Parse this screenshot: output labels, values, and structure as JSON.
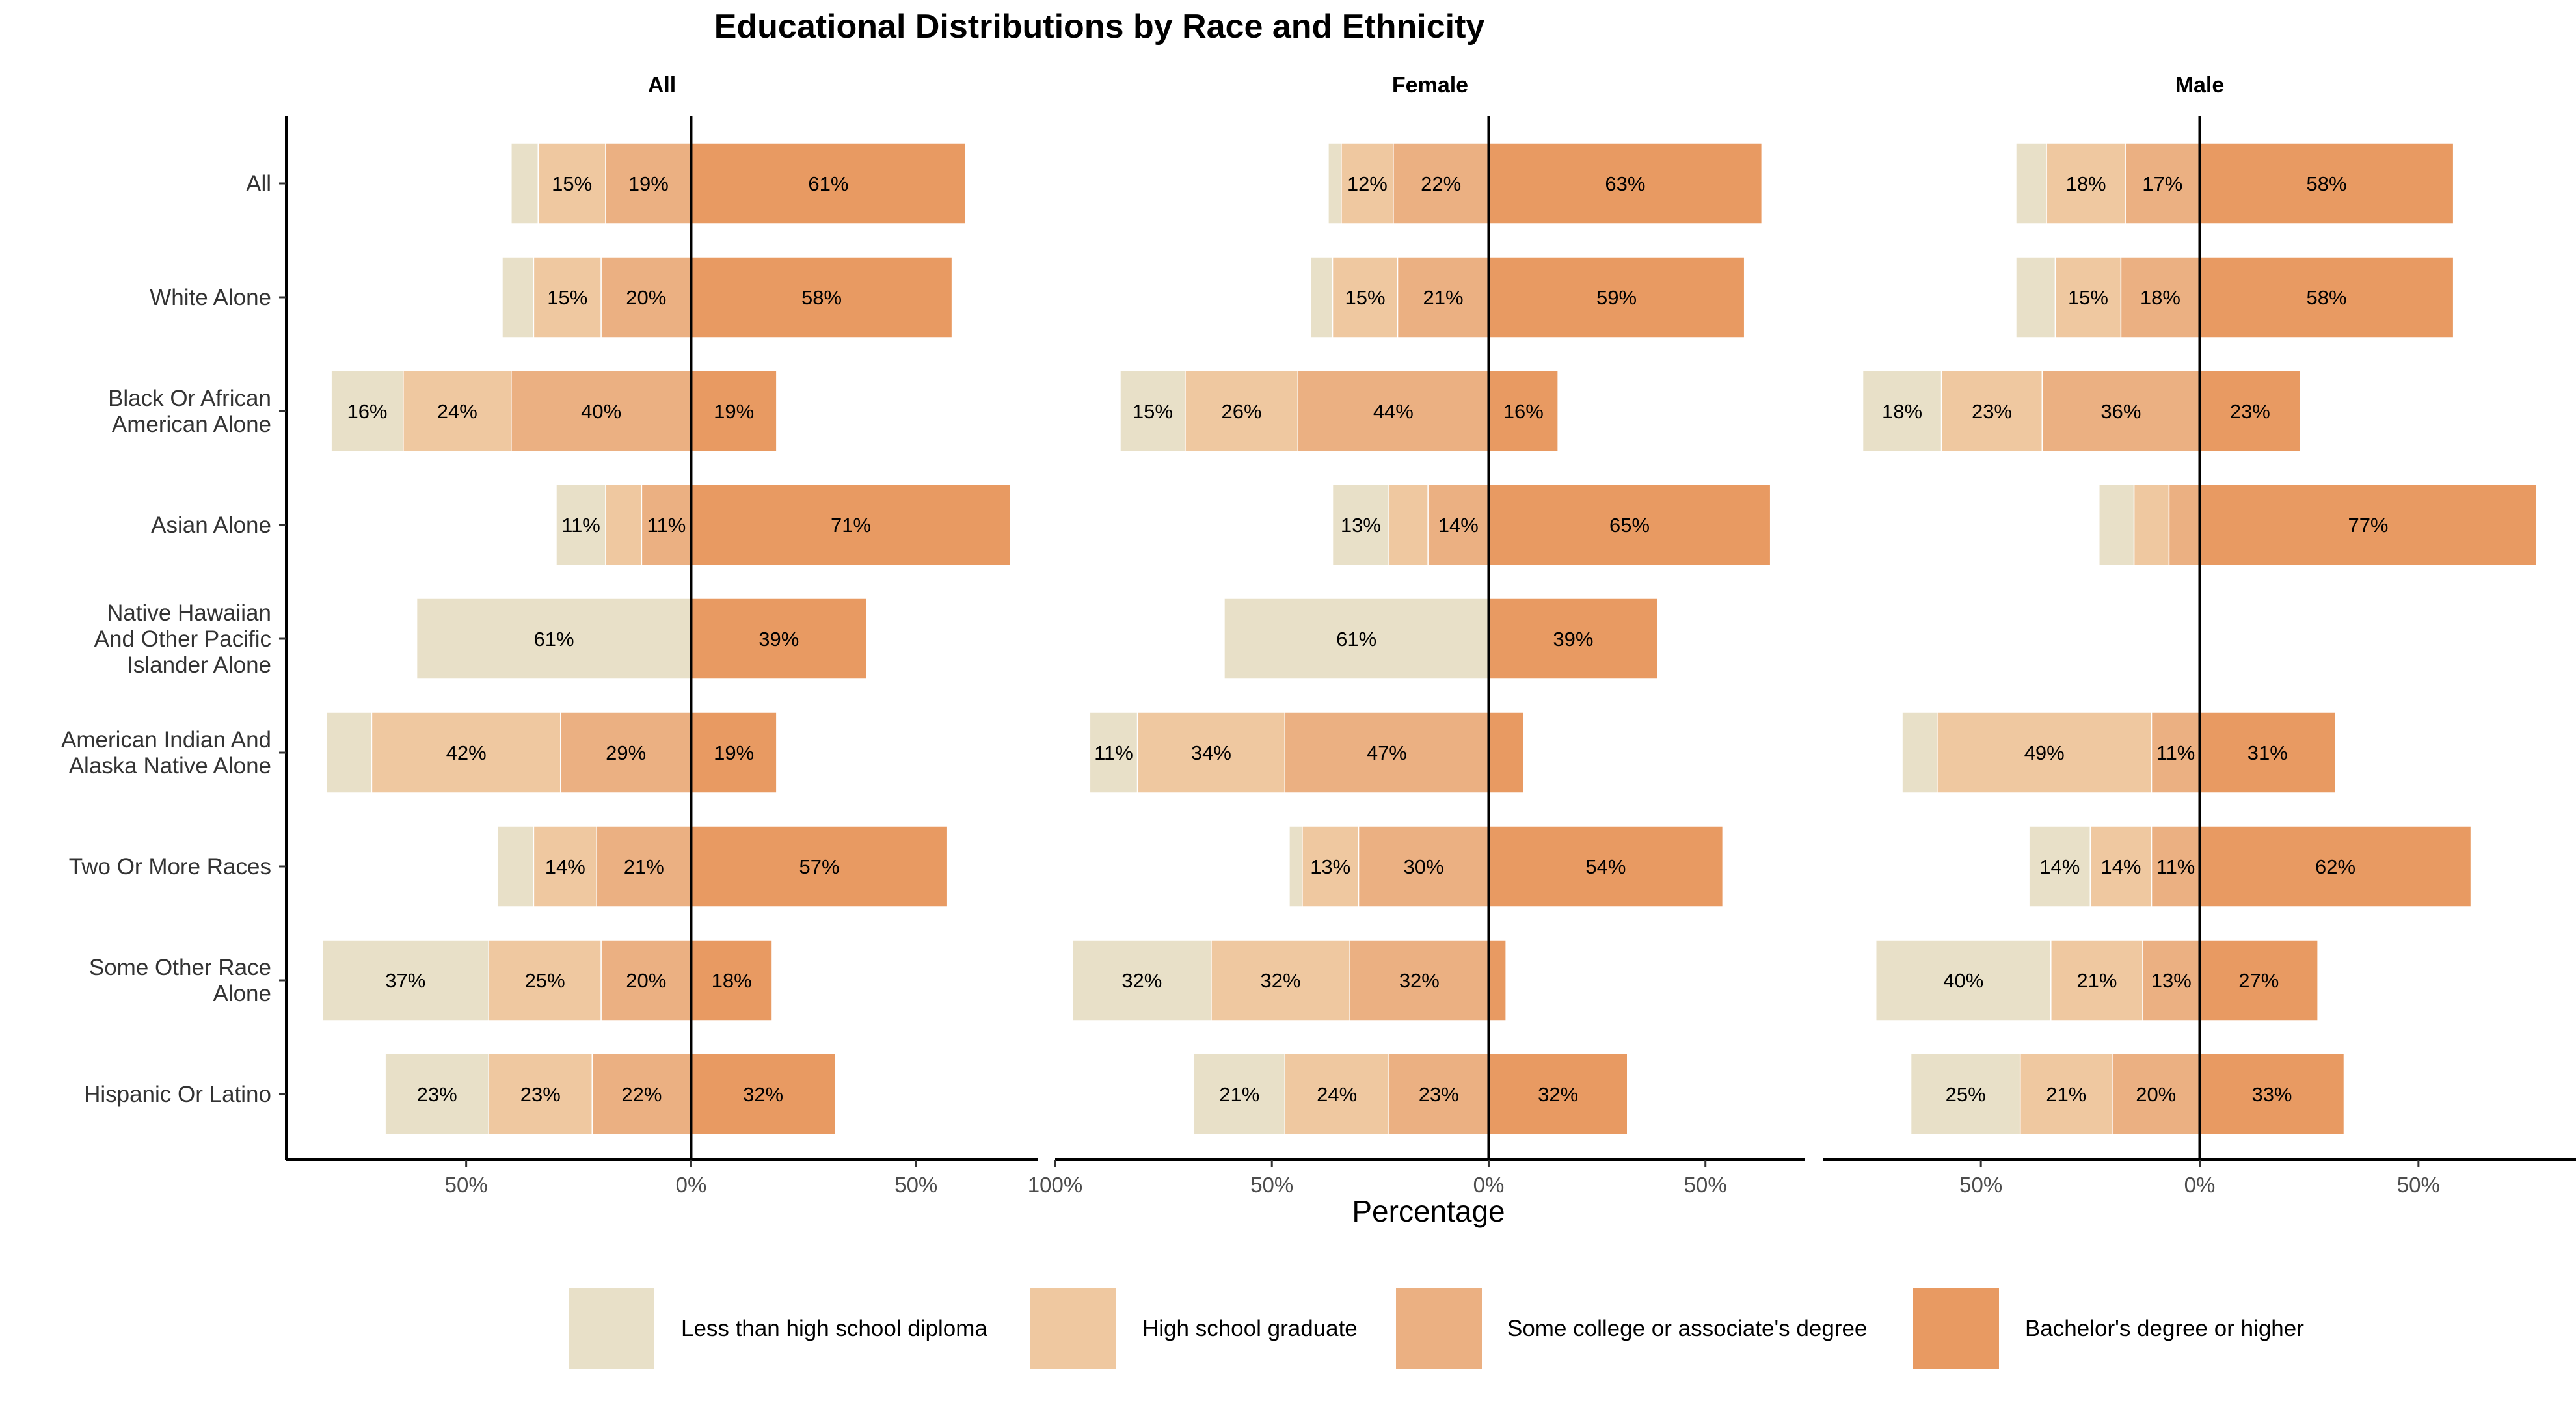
{
  "chart_data": {
    "type": "bar",
    "subtype": "diverging stacked horizontal bar, faceted",
    "title": "Educational Distributions by Race and Ethnicity",
    "xlabel": "Percentage",
    "ylabel": "",
    "categories": [
      "All",
      "White Alone",
      "Black Or African American Alone",
      "Asian Alone",
      "Native Hawaiian And Other Pacific Islander Alone",
      "American Indian And Alaska Native Alone",
      "Two Or More Races",
      "Some Other Race Alone",
      "Hispanic Or Latino"
    ],
    "category_lines": [
      [
        "All"
      ],
      [
        "White Alone"
      ],
      [
        "Black Or African",
        "American Alone"
      ],
      [
        "Asian Alone"
      ],
      [
        "Native Hawaiian",
        "And Other Pacific",
        "Islander Alone"
      ],
      [
        "American Indian And",
        "Alaska Native Alone"
      ],
      [
        "Two Or More Races"
      ],
      [
        "Some Other Race",
        "Alone"
      ],
      [
        "Hispanic Or Latino"
      ]
    ],
    "legend": [
      {
        "name": "Less than high school diploma",
        "color": "#E8E0C8"
      },
      {
        "name": "High school graduate",
        "color": "#EFC8A0"
      },
      {
        "name": "Some college or associate's degree",
        "color": "#EBB082"
      },
      {
        "name": "Bachelor's degree or higher",
        "color": "#E89A62"
      }
    ],
    "legend_position": "bottom",
    "negative_levels": [
      "Less than high school diploma",
      "High school graduate",
      "Some college or associate's degree"
    ],
    "positive_levels": [
      "Bachelor's degree or higher"
    ],
    "facets": [
      {
        "name": "All",
        "xlim": [
          -0.9,
          0.77
        ],
        "ticks": [
          {
            "v": -0.5,
            "label": "50%"
          },
          {
            "v": 0,
            "label": "0%"
          },
          {
            "v": 0.5,
            "label": "50%"
          }
        ],
        "rows": [
          {
            "values": [
              6,
              15,
              19,
              61
            ],
            "labels": [
              "",
              "15%",
              "19%",
              "61%"
            ]
          },
          {
            "values": [
              7,
              15,
              20,
              58
            ],
            "labels": [
              "",
              "15%",
              "20%",
              "58%"
            ]
          },
          {
            "values": [
              16,
              24,
              40,
              19
            ],
            "labels": [
              "16%",
              "24%",
              "40%",
              "19%"
            ]
          },
          {
            "values": [
              11,
              8,
              11,
              71
            ],
            "labels": [
              "11%",
              "",
              "11%",
              "71%"
            ]
          },
          {
            "values": [
              61,
              0,
              0,
              39
            ],
            "labels": [
              "61%",
              "",
              "",
              "39%"
            ]
          },
          {
            "values": [
              10,
              42,
              29,
              19
            ],
            "labels": [
              "",
              "42%",
              "29%",
              "19%"
            ]
          },
          {
            "values": [
              8,
              14,
              21,
              57
            ],
            "labels": [
              "",
              "14%",
              "21%",
              "57%"
            ]
          },
          {
            "values": [
              37,
              25,
              20,
              18
            ],
            "labels": [
              "37%",
              "25%",
              "20%",
              "18%"
            ]
          },
          {
            "values": [
              23,
              23,
              22,
              32
            ],
            "labels": [
              "23%",
              "23%",
              "22%",
              "32%"
            ]
          }
        ]
      },
      {
        "name": "Female",
        "xlim": [
          -1.0,
          0.73
        ],
        "ticks": [
          {
            "v": -1.0,
            "label": "100%"
          },
          {
            "v": -0.5,
            "label": "50%"
          },
          {
            "v": 0,
            "label": "0%"
          },
          {
            "v": 0.5,
            "label": "50%"
          }
        ],
        "rows": [
          {
            "values": [
              3,
              12,
              22,
              63
            ],
            "labels": [
              "",
              "12%",
              "22%",
              "63%"
            ]
          },
          {
            "values": [
              5,
              15,
              21,
              59
            ],
            "labels": [
              "",
              "15%",
              "21%",
              "59%"
            ]
          },
          {
            "values": [
              15,
              26,
              44,
              16
            ],
            "labels": [
              "15%",
              "26%",
              "44%",
              "16%"
            ]
          },
          {
            "values": [
              13,
              9,
              14,
              65
            ],
            "labels": [
              "13%",
              "",
              "14%",
              "65%"
            ]
          },
          {
            "values": [
              61,
              0,
              0,
              39
            ],
            "labels": [
              "61%",
              "",
              "",
              "39%"
            ]
          },
          {
            "values": [
              11,
              34,
              47,
              8
            ],
            "labels": [
              "11%",
              "34%",
              "47%",
              ""
            ]
          },
          {
            "values": [
              3,
              13,
              30,
              54
            ],
            "labels": [
              "",
              "13%",
              "30%",
              "54%"
            ]
          },
          {
            "values": [
              32,
              32,
              32,
              4
            ],
            "labels": [
              "32%",
              "32%",
              "32%",
              ""
            ]
          },
          {
            "values": [
              21,
              24,
              23,
              32
            ],
            "labels": [
              "21%",
              "24%",
              "23%",
              "32%"
            ]
          }
        ]
      },
      {
        "name": "Male",
        "xlim": [
          -0.86,
          0.86
        ],
        "ticks": [
          {
            "v": -0.5,
            "label": "50%"
          },
          {
            "v": 0,
            "label": "0%"
          },
          {
            "v": 0.5,
            "label": "50%"
          }
        ],
        "rows": [
          {
            "values": [
              7,
              18,
              17,
              58
            ],
            "labels": [
              "",
              "18%",
              "17%",
              "58%"
            ]
          },
          {
            "values": [
              9,
              15,
              18,
              58
            ],
            "labels": [
              "",
              "15%",
              "18%",
              "58%"
            ]
          },
          {
            "values": [
              18,
              23,
              36,
              23
            ],
            "labels": [
              "18%",
              "23%",
              "36%",
              "23%"
            ]
          },
          {
            "values": [
              8,
              8,
              7,
              77
            ],
            "labels": [
              "",
              "",
              "",
              "77%"
            ]
          },
          {
            "values": [
              0,
              0,
              0,
              0
            ],
            "labels": [
              "",
              "",
              "",
              ""
            ]
          },
          {
            "values": [
              8,
              49,
              11,
              31
            ],
            "labels": [
              "",
              "49%",
              "11%",
              "31%"
            ]
          },
          {
            "values": [
              14,
              14,
              11,
              62
            ],
            "labels": [
              "14%",
              "14%",
              "11%",
              "62%"
            ]
          },
          {
            "values": [
              40,
              21,
              13,
              27
            ],
            "labels": [
              "40%",
              "21%",
              "13%",
              "27%"
            ]
          },
          {
            "values": [
              25,
              21,
              20,
              33
            ],
            "labels": [
              "25%",
              "21%",
              "20%",
              "33%"
            ]
          }
        ]
      }
    ]
  }
}
